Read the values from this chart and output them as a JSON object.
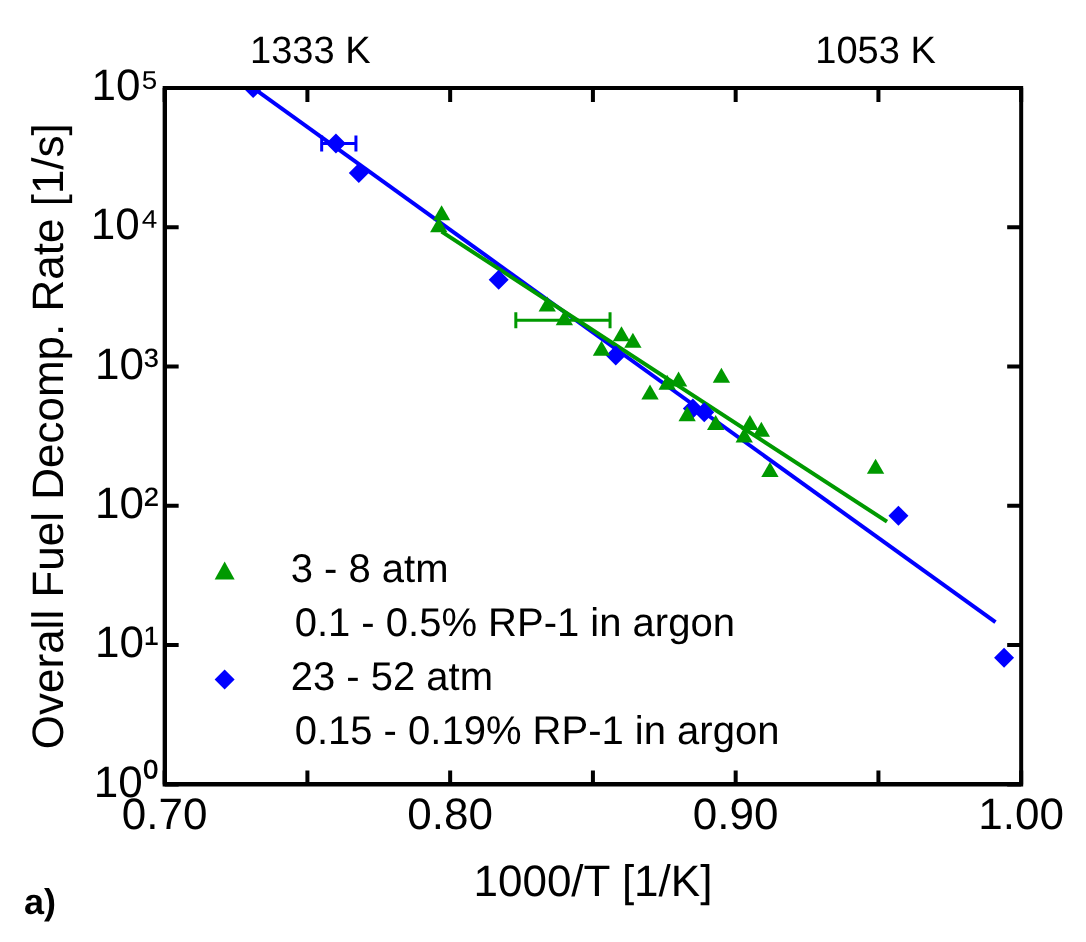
{
  "chart_data": {
    "type": "scatter",
    "xlabel": "1000/T [1/K]",
    "ylabel": "Overall Fuel Decomp. Rate [1/s]",
    "annotations": [
      "a)",
      "1333 K",
      "1053 K"
    ],
    "xlim": [
      0.7,
      1.0
    ],
    "xticks": [
      {
        "value": 0.7,
        "label": "0.70"
      },
      {
        "value": 0.75,
        "label": null
      },
      {
        "value": 0.8,
        "label": "0.80"
      },
      {
        "value": 0.85,
        "label": null
      },
      {
        "value": 0.9,
        "label": "0.90"
      },
      {
        "value": 0.95,
        "label": null
      },
      {
        "value": 1.0,
        "label": "1.00"
      }
    ],
    "ylim": [
      1,
      100000
    ],
    "yticks": [
      {
        "value": 1,
        "label": "10⁰"
      },
      {
        "value": 10,
        "label": "10¹"
      },
      {
        "value": 100,
        "label": "10²"
      },
      {
        "value": 1000,
        "label": "10³"
      },
      {
        "value": 10000,
        "label": "10⁴"
      },
      {
        "value": 100000,
        "label": "10⁵"
      }
    ],
    "log": "y",
    "grid": false,
    "legend": "bottom left",
    "series": [
      {
        "name": "3 - 8 atm\n0.1 - 0.5% RP-1 in argon",
        "color": "#009900",
        "marker": "triangle",
        "x": [
          0.797,
          0.796,
          0.834,
          0.84,
          0.853,
          0.86,
          0.864,
          0.87,
          0.876,
          0.88,
          0.883,
          0.893,
          0.895,
          0.903,
          0.905,
          0.909,
          0.912,
          0.949
        ],
        "values": [
          12200,
          10000,
          2700,
          2150,
          1300,
          1650,
          1480,
          630,
          740,
          780,
          440,
          380,
          830,
          310,
          380,
          340,
          175,
          185
        ],
        "xerrors": [
          null,
          null,
          null,
          [
            0.823,
            0.856
          ],
          null,
          null,
          null,
          null,
          null,
          null,
          null,
          null,
          null,
          null,
          null,
          null,
          null,
          null
        ]
      },
      {
        "name": "23 - 52 atm\n0.15 - 0.19% RP-1 in argon",
        "color": "#0000ff",
        "marker": "diamond",
        "x": [
          0.731,
          0.76,
          0.768,
          0.817,
          0.858,
          0.885,
          0.889,
          0.957,
          0.994
        ],
        "values": [
          100000,
          40000,
          24500,
          4200,
          1200,
          500,
          470,
          85,
          8.1
        ],
        "xerrors": [
          null,
          [
            0.755,
            0.767
          ],
          null,
          null,
          null,
          null,
          null,
          null,
          null
        ]
      },
      {
        "type": "line",
        "color": "#009900",
        "marker": "none",
        "x": [
          0.797,
          0.953
        ],
        "values": [
          9300,
          77
        ]
      },
      {
        "type": "line",
        "color": "#0000ff",
        "marker": "none",
        "x": [
          0.731,
          0.991
        ],
        "values": [
          100000,
          14.6
        ]
      }
    ]
  }
}
